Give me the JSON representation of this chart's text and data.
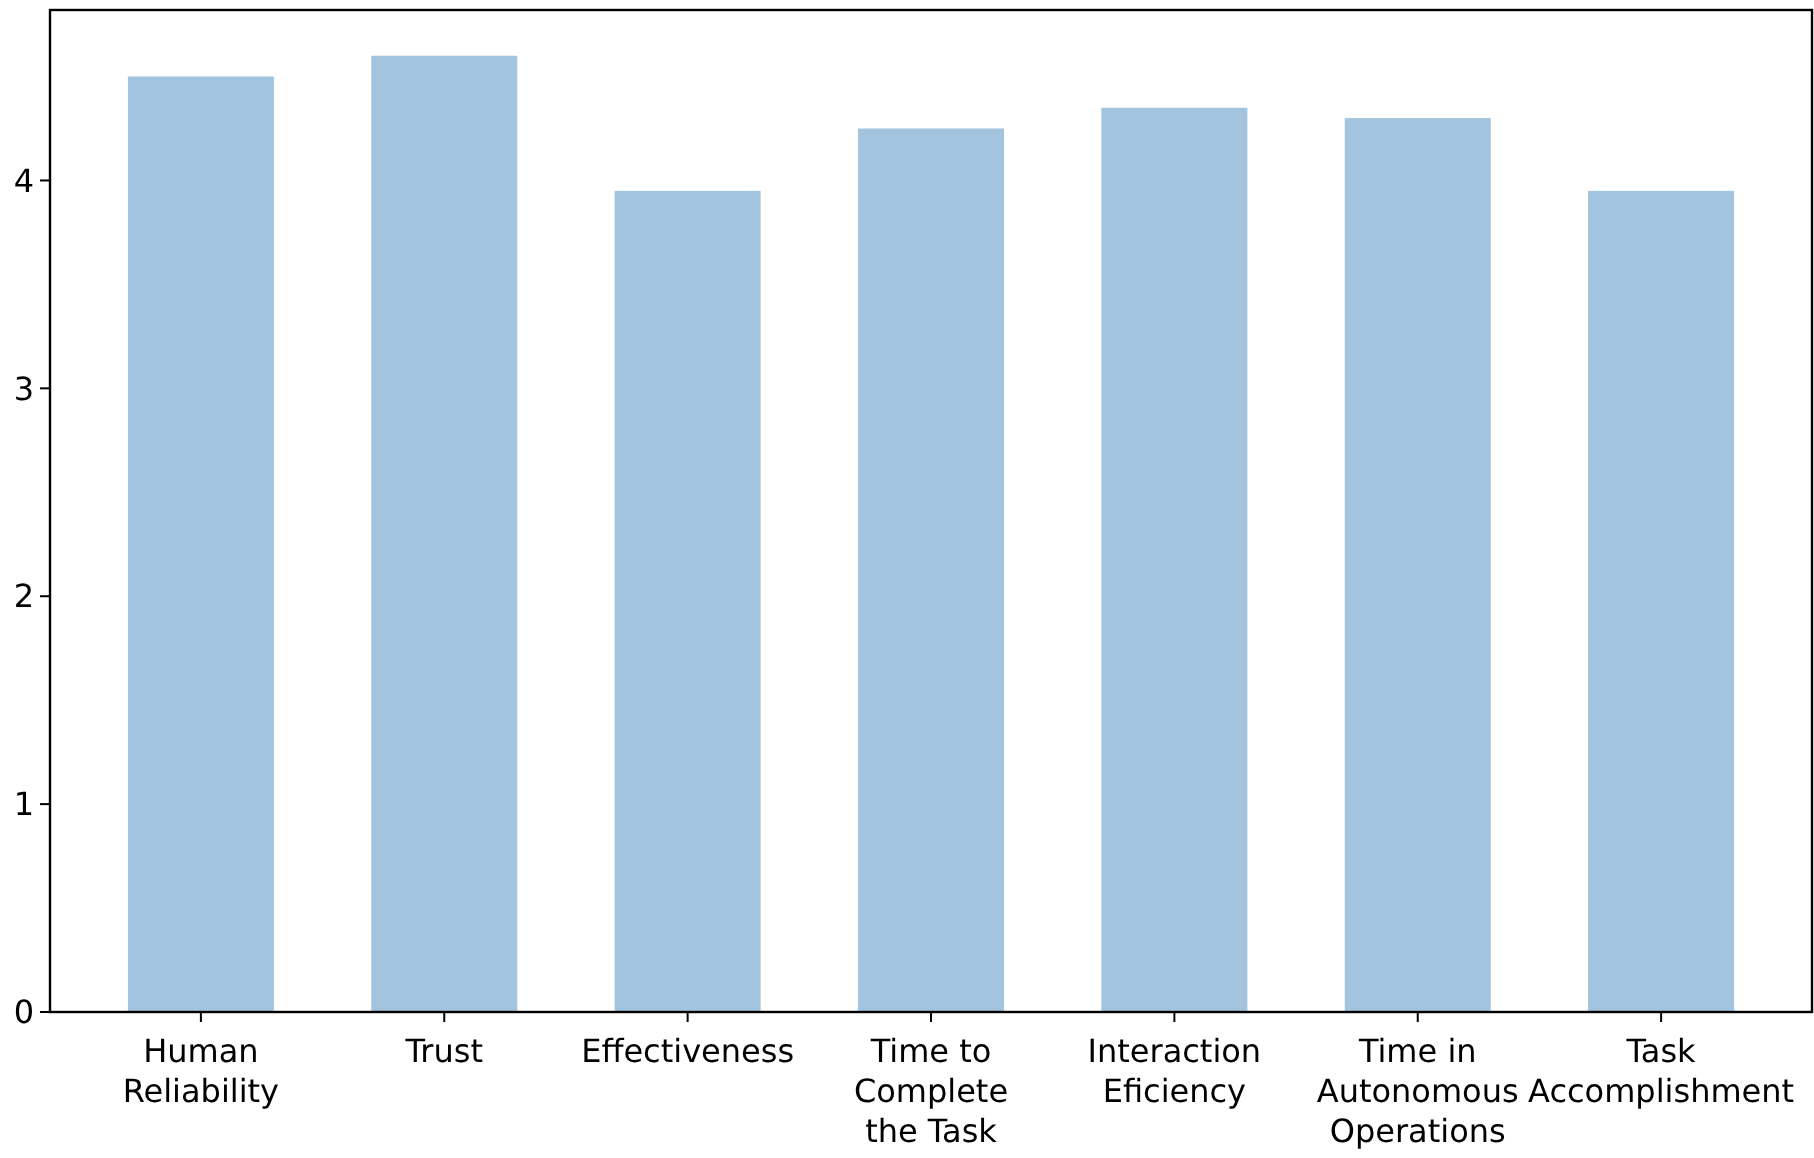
{
  "chart_data": {
    "type": "bar",
    "categories": [
      "Human\nReliability",
      "Trust",
      "Effectiveness",
      "Time to\nComplete\nthe Task",
      "Interaction\nEficiency",
      "Time in\nAutonomous\nOperations",
      "Task\nAccomplishment"
    ],
    "values": [
      4.5,
      4.6,
      3.95,
      4.25,
      4.35,
      4.3,
      3.95
    ],
    "color": "#a2c4de",
    "ylim": [
      0,
      4.82
    ],
    "yticks": [
      0,
      1,
      2,
      3,
      4
    ],
    "grid": false
  }
}
